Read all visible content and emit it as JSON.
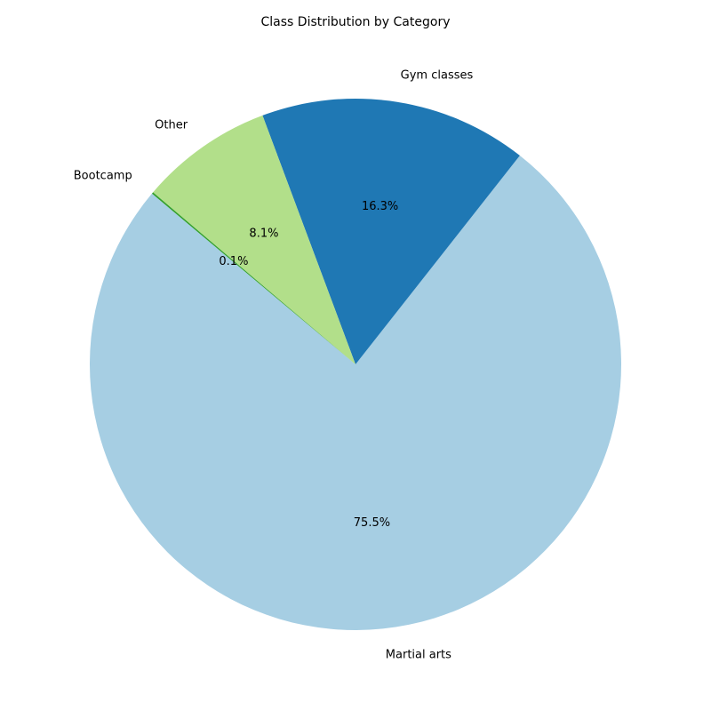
{
  "chart_data": {
    "type": "pie",
    "title": "Class Distribution by Category",
    "slices": [
      {
        "label": "Martial arts",
        "value": 75.5,
        "pct_label": "75.5%",
        "color": "#a6cee3"
      },
      {
        "label": "Gym classes",
        "value": 16.3,
        "pct_label": "16.3%",
        "color": "#1f78b4"
      },
      {
        "label": "Other",
        "value": 8.1,
        "pct_label": "8.1%",
        "color": "#b2df8a"
      },
      {
        "label": "Bootcamp",
        "value": 0.1,
        "pct_label": "0.1%",
        "color": "#33a02c"
      }
    ],
    "start_angle_deg": 140,
    "direction": "counterclockwise",
    "legend": "none"
  }
}
